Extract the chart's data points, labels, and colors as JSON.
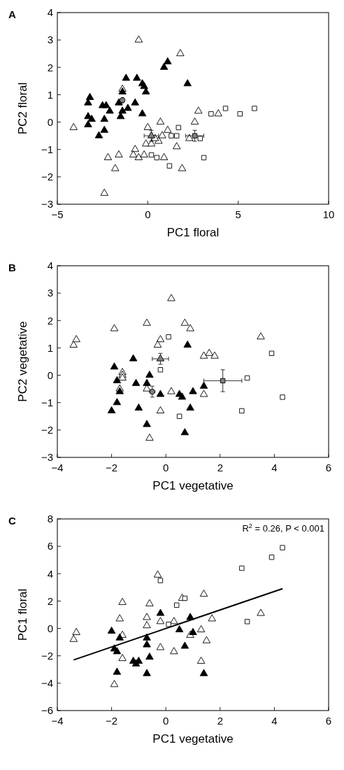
{
  "chart_data": [
    {
      "type": "scatter",
      "title": "A",
      "xlabel": "PC1 floral",
      "ylabel": "PC2 floral",
      "xlim": [
        -5,
        10
      ],
      "ylim": [
        -3,
        4
      ],
      "xticks": [
        {
          "value": -5,
          "label": "−5"
        },
        0,
        5,
        10
      ],
      "yticks": [
        {
          "value": -3,
          "label": "−3"
        },
        {
          "value": -2,
          "label": "−2"
        },
        {
          "value": -1,
          "label": "−1"
        },
        0,
        1,
        2,
        3,
        4
      ],
      "grid": false,
      "series": [
        {
          "color": "#ffffff",
          "marker": "triangle",
          "x": [
            -4.1,
            -0.5,
            1.8,
            -1.4,
            2.8,
            3.9,
            0.7,
            2.6,
            0.0,
            1.1,
            0.8,
            0.6,
            0.4,
            -0.1,
            0.2,
            1.6,
            2.3,
            -0.7,
            -2.2,
            -1.6,
            -0.8,
            -0.5,
            -0.2,
            0.9,
            -1.8,
            1.9,
            -2.4
          ],
          "values": [
            -0.2,
            3.0,
            2.5,
            1.2,
            0.4,
            0.3,
            0.0,
            0.0,
            -0.2,
            -0.3,
            -0.5,
            -0.7,
            -0.6,
            -0.8,
            -0.8,
            -0.9,
            -0.6,
            -1.0,
            -1.3,
            -1.2,
            -1.2,
            -1.3,
            -1.2,
            -1.3,
            -1.7,
            -1.7,
            -2.6
          ]
        },
        {
          "color": "#000000",
          "marker": "triangle",
          "x": [
            -3.2,
            -3.3,
            -2.5,
            -2.3,
            -2.1,
            -1.6,
            -1.2,
            -0.6,
            -0.3,
            -0.2,
            -0.1,
            -1.4,
            -0.7,
            -1.1,
            -1.4,
            -1.5,
            -0.3,
            0.9,
            1.1,
            2.2,
            -3.3,
            -3.1,
            -3.3,
            -2.4,
            -2.4,
            -2.7
          ],
          "values": [
            0.9,
            0.7,
            0.6,
            0.6,
            0.4,
            0.7,
            1.6,
            1.6,
            1.4,
            1.3,
            1.1,
            1.1,
            0.7,
            0.5,
            0.4,
            0.2,
            0.3,
            2.0,
            2.2,
            1.4,
            0.2,
            0.1,
            -0.1,
            0.1,
            -0.3,
            -0.5
          ]
        },
        {
          "color": "#ffffff",
          "marker": "square",
          "x": [
            3.5,
            4.3,
            5.1,
            5.9,
            1.7,
            1.3,
            1.6,
            2.9,
            3.1,
            1.2,
            0.2,
            0.5
          ],
          "values": [
            0.3,
            0.5,
            0.3,
            0.5,
            -0.2,
            -0.5,
            -0.5,
            -0.6,
            -1.3,
            -1.6,
            -1.2,
            -1.3
          ]
        },
        {
          "color": "#808080",
          "marker": "circle",
          "x": [
            -1.4
          ],
          "values": [
            0.8
          ],
          "errors": [
            0.1
          ],
          "xerrors": [
            0.1
          ]
        },
        {
          "color": "#808080",
          "marker": "triangle",
          "x": [
            0.2
          ],
          "values": [
            -0.5
          ],
          "errors": [
            0.2
          ],
          "xerrors": [
            0.4
          ]
        },
        {
          "color": "#808080",
          "marker": "square",
          "x": [
            2.6
          ],
          "values": [
            -0.5
          ],
          "errors": [
            0.2
          ],
          "xerrors": [
            0.5
          ]
        }
      ]
    },
    {
      "type": "scatter",
      "title": "B",
      "xlabel": "PC1 vegetative",
      "ylabel": "PC2 vegetative",
      "xlim": [
        -4,
        6
      ],
      "ylim": [
        -3,
        4
      ],
      "xticks": [
        {
          "value": -4,
          "label": "−4"
        },
        {
          "value": -2,
          "label": "−2"
        },
        0,
        2,
        4,
        6
      ],
      "yticks": [
        {
          "value": -3,
          "label": "−3"
        },
        {
          "value": -2,
          "label": "−2"
        },
        {
          "value": -1,
          "label": "−1"
        },
        0,
        1,
        2,
        3,
        4
      ],
      "grid": false,
      "series": [
        {
          "color": "#ffffff",
          "marker": "triangle",
          "x": [
            -3.4,
            -3.3,
            -1.9,
            -0.7,
            0.2,
            0.7,
            0.9,
            -0.2,
            -0.3,
            1.4,
            1.6,
            1.8,
            3.5,
            -1.6,
            -1.6,
            -1.6,
            -1.7,
            -0.7,
            0.2,
            1.4,
            -0.2,
            -0.6
          ],
          "values": [
            1.1,
            1.3,
            1.7,
            1.9,
            2.8,
            1.9,
            1.7,
            1.3,
            1.1,
            0.7,
            0.8,
            0.7,
            1.4,
            0.1,
            0.0,
            -0.1,
            -0.5,
            -0.5,
            -0.6,
            -0.7,
            -1.3,
            -2.3
          ]
        },
        {
          "color": "#000000",
          "marker": "triangle",
          "x": [
            -1.9,
            -1.2,
            0.8,
            -1.8,
            -1.1,
            -0.6,
            -0.7,
            -1.7,
            -1.8,
            -2.0,
            -1.0,
            -0.2,
            0.5,
            0.6,
            1.0,
            1.4,
            0.9,
            -0.7,
            0.7
          ],
          "values": [
            0.3,
            0.6,
            1.1,
            -0.2,
            -0.3,
            0.0,
            -0.3,
            -0.6,
            -1.0,
            -1.3,
            -1.2,
            -0.7,
            -0.7,
            -0.8,
            -0.6,
            -0.4,
            -1.2,
            -1.8,
            -2.1
          ]
        },
        {
          "color": "#ffffff",
          "marker": "square",
          "x": [
            0.1,
            -0.2,
            3.0,
            3.9,
            4.3,
            2.8,
            0.5
          ],
          "values": [
            1.4,
            0.2,
            -0.1,
            0.8,
            -0.8,
            -1.3,
            -1.5
          ]
        },
        {
          "color": "#808080",
          "marker": "circle",
          "x": [
            -0.5
          ],
          "values": [
            -0.6
          ],
          "errors": [
            0.2
          ],
          "xerrors": [
            0.1
          ]
        },
        {
          "color": "#808080",
          "marker": "triangle",
          "x": [
            -0.2
          ],
          "values": [
            0.6
          ],
          "errors": [
            0.2
          ],
          "xerrors": [
            0.3
          ]
        },
        {
          "color": "#808080",
          "marker": "square",
          "x": [
            2.1
          ],
          "values": [
            -0.2
          ],
          "errors": [
            0.4
          ],
          "xerrors": [
            0.7
          ]
        }
      ]
    },
    {
      "type": "scatter",
      "title": "C",
      "xlabel": "PC1 vegetative",
      "ylabel": "PC1 floral",
      "xlim": [
        -4,
        6
      ],
      "ylim": [
        -6,
        8
      ],
      "xticks": [
        {
          "value": -4,
          "label": "−4"
        },
        {
          "value": -2,
          "label": "−2"
        },
        0,
        2,
        4,
        6
      ],
      "yticks": [
        {
          "value": -6,
          "label": "−6"
        },
        {
          "value": -4,
          "label": "−4"
        },
        {
          "value": -2,
          "label": "−2"
        },
        0,
        2,
        4,
        6,
        8
      ],
      "grid": false,
      "annotations": [
        "R$^{2}$ = 0.26, P < 0.001"
      ],
      "series": [
        {
          "color": "#ffffff",
          "marker": "triangle",
          "x": [
            -0.3,
            -1.6,
            -0.6,
            0.6,
            1.4,
            -1.7,
            -0.7,
            -0.7,
            -0.2,
            0.3,
            1.7,
            3.5,
            -3.4,
            -3.3,
            -1.6,
            0.9,
            1.3,
            1.5,
            -0.2,
            0.3,
            -1.6,
            1.3,
            -1.9
          ],
          "values": [
            3.9,
            1.9,
            1.8,
            2.2,
            2.5,
            0.7,
            0.8,
            0.2,
            0.5,
            0.5,
            0.7,
            1.1,
            -0.8,
            -0.3,
            -0.5,
            -0.5,
            -0.1,
            -0.9,
            -1.4,
            -1.7,
            -2.2,
            -2.4,
            -4.1
          ]
        },
        {
          "color": "#000000",
          "marker": "triangle",
          "x": [
            -0.2,
            0.9,
            -2.0,
            -1.7,
            -1.9,
            -1.8,
            -0.7,
            -0.7,
            0.5,
            1.0,
            0.7,
            -0.6,
            -1.2,
            -1.1,
            -1.0,
            -1.8,
            -0.7,
            1.4
          ],
          "values": [
            1.1,
            0.8,
            -0.2,
            -0.7,
            -1.5,
            -1.7,
            -0.7,
            -1.2,
            -0.1,
            -0.3,
            -1.3,
            -2.1,
            -2.4,
            -2.6,
            -2.4,
            -3.2,
            -3.3,
            -3.3
          ]
        },
        {
          "color": "#ffffff",
          "marker": "square",
          "x": [
            2.8,
            3.9,
            4.3,
            -0.2,
            0.4,
            0.7,
            0.1,
            3.0
          ],
          "values": [
            4.4,
            5.2,
            5.9,
            3.5,
            1.7,
            2.2,
            0.3,
            0.5
          ]
        },
        {
          "type": "line",
          "color": "#000000",
          "marker": "none",
          "x": [
            -3.4,
            4.3
          ],
          "values": [
            -2.3,
            2.9
          ]
        }
      ]
    }
  ]
}
